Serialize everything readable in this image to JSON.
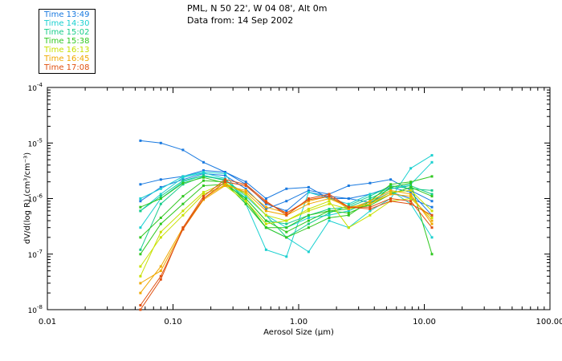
{
  "header": {
    "line1": "PML, N 50 22', W 04 08', Alt 0m",
    "line2": "Data from: 14 Sep 2002"
  },
  "legend": [
    {
      "label": "Time 13:49",
      "color": "#1a7ae0"
    },
    {
      "label": "Time 14:30",
      "color": "#1ad0d0"
    },
    {
      "label": "Time 15:02",
      "color": "#18cc8a"
    },
    {
      "label": "Time 15:38",
      "color": "#30c820"
    },
    {
      "label": "Time 16:13",
      "color": "#c8e000"
    },
    {
      "label": "Time 16:45",
      "color": "#f0a800"
    },
    {
      "label": "Time 17:08",
      "color": "#e05010"
    }
  ],
  "chart_data": {
    "type": "line",
    "xscale": "log",
    "yscale": "log",
    "xlim": [
      0.01,
      100
    ],
    "ylim": [
      1e-08,
      0.0001
    ],
    "xlabel": "Aerosol Size (μm)",
    "ylabel": "dV/d(log R) (cm³/cm⁻³)",
    "xticks": [
      {
        "value": 0.01,
        "label": "0.01"
      },
      {
        "value": 0.1,
        "label": "0.10"
      },
      {
        "value": 1,
        "label": "1.00"
      },
      {
        "value": 10,
        "label": "10.00"
      },
      {
        "value": 100,
        "label": "100.00"
      }
    ],
    "yticks": [
      {
        "value": 1e-08,
        "base": "10",
        "exp": "-8"
      },
      {
        "value": 1e-07,
        "base": "10",
        "exp": "-7"
      },
      {
        "value": 1e-06,
        "base": "10",
        "exp": "-6"
      },
      {
        "value": 1e-05,
        "base": "10",
        "exp": "-5"
      },
      {
        "value": 0.0001,
        "base": "10",
        "exp": "-4"
      }
    ],
    "x": [
      0.055,
      0.08,
      0.12,
      0.175,
      0.26,
      0.38,
      0.55,
      0.8,
      1.2,
      1.75,
      2.5,
      3.7,
      5.4,
      7.8,
      11.5
    ],
    "series": [
      {
        "name": "13:49 a",
        "color": "#1a7ae0",
        "values": [
          1.1e-05,
          1e-05,
          7.5e-06,
          4.5e-06,
          3e-06,
          1.8e-06,
          8e-07,
          6e-07,
          1.3e-06,
          1.1e-06,
          1e-06,
          1.2e-06,
          1.6e-06,
          1.3e-06,
          5e-07
        ]
      },
      {
        "name": "13:49 b",
        "color": "#1a7ae0",
        "values": [
          1.8e-06,
          2.2e-06,
          2.5e-06,
          3.2e-06,
          3e-06,
          2e-06,
          1e-06,
          1.5e-06,
          1.6e-06,
          1e-06,
          1e-06,
          8.5e-07,
          1.3e-06,
          1e-06,
          7e-07
        ]
      },
      {
        "name": "13:49 c",
        "color": "#1a7ae0",
        "values": [
          9e-07,
          1.6e-06,
          2.2e-06,
          2.8e-06,
          2.6e-06,
          1.5e-06,
          6.5e-07,
          9e-07,
          1.4e-06,
          1.2e-06,
          1.7e-06,
          1.9e-06,
          2.2e-06,
          1.4e-06,
          9e-07
        ]
      },
      {
        "name": "14:30 a",
        "color": "#1ad0d0",
        "values": [
          1e-06,
          1.5e-06,
          2.5e-06,
          3e-06,
          2.8e-06,
          8e-07,
          1.2e-07,
          9e-08,
          1.3e-06,
          1e-06,
          8e-07,
          1.2e-06,
          1.5e-06,
          1.8e-06,
          4.5e-06
        ]
      },
      {
        "name": "14:30 b",
        "color": "#1ad0d0",
        "values": [
          6e-07,
          1.2e-06,
          2.4e-06,
          2.9e-06,
          2.3e-06,
          9e-07,
          3e-07,
          2e-07,
          1.1e-07,
          4e-07,
          3e-07,
          6e-07,
          1e-06,
          3.5e-06,
          6e-06
        ]
      },
      {
        "name": "14:30 c",
        "color": "#1ad0d0",
        "values": [
          3e-07,
          1e-06,
          2e-06,
          2.6e-06,
          2.2e-06,
          1.1e-06,
          5e-07,
          3e-07,
          4.5e-07,
          5e-07,
          6e-07,
          9e-07,
          1.4e-06,
          8e-07,
          2e-07
        ]
      },
      {
        "name": "15:02 a",
        "color": "#18cc8a",
        "values": [
          1.2e-07,
          8e-07,
          1.8e-06,
          2.5e-06,
          2.2e-06,
          1e-06,
          4e-07,
          3.5e-07,
          5e-07,
          6.5e-07,
          7e-07,
          1e-06,
          1.5e-06,
          1.7e-06,
          1.2e-06
        ]
      },
      {
        "name": "15:02 b",
        "color": "#18cc8a",
        "values": [
          6e-07,
          1.1e-06,
          2.1e-06,
          2.6e-06,
          2.1e-06,
          1.2e-06,
          5e-07,
          2e-07,
          3.5e-07,
          5.5e-07,
          7.5e-07,
          1.1e-06,
          1.7e-06,
          1.5e-06,
          1.4e-06
        ]
      },
      {
        "name": "15:38 a",
        "color": "#30c820",
        "values": [
          2e-07,
          4.5e-07,
          1.1e-06,
          2.1e-06,
          2e-06,
          9e-07,
          3e-07,
          2e-07,
          3e-07,
          4.5e-07,
          5e-07,
          9e-07,
          1.8e-06,
          2e-06,
          2.5e-06
        ]
      },
      {
        "name": "15:38 b",
        "color": "#30c820",
        "values": [
          7e-07,
          1e-06,
          1.9e-06,
          2.4e-06,
          1.9e-06,
          8e-07,
          3e-07,
          3e-07,
          5e-07,
          6e-07,
          6.5e-07,
          7.5e-07,
          1.2e-06,
          1.6e-06,
          1.1e-06
        ]
      },
      {
        "name": "15:38 c",
        "color": "#30c820",
        "values": [
          1e-07,
          3.5e-07,
          8e-07,
          1.7e-06,
          1.8e-06,
          1e-06,
          4e-07,
          2.5e-07,
          4e-07,
          6e-07,
          5.5e-07,
          8e-07,
          1.6e-06,
          1.9e-06,
          1e-07
        ]
      },
      {
        "name": "16:13 a",
        "color": "#c8e000",
        "values": [
          4e-08,
          2.5e-07,
          6e-07,
          1.3e-06,
          1.9e-06,
          1.2e-06,
          5e-07,
          4e-07,
          6e-07,
          8e-07,
          6.5e-07,
          8e-07,
          1.3e-06,
          1.4e-06,
          6e-07
        ]
      },
      {
        "name": "16:13 b",
        "color": "#c8e000",
        "values": [
          6e-08,
          2e-07,
          5e-07,
          1.2e-06,
          1.7e-06,
          9e-07,
          3.5e-07,
          4e-07,
          6.5e-07,
          9e-07,
          3e-07,
          5e-07,
          9e-07,
          1e-06,
          4.5e-07
        ]
      },
      {
        "name": "16:45 a",
        "color": "#f0a800",
        "values": [
          2e-08,
          6e-08,
          3e-07,
          1e-06,
          1.8e-06,
          1.3e-06,
          6e-07,
          5e-07,
          8e-07,
          1e-06,
          7e-07,
          8e-07,
          1.2e-06,
          1.1e-06,
          4e-07
        ]
      },
      {
        "name": "16:45 b",
        "color": "#f0a800",
        "values": [
          3e-08,
          5e-08,
          2.8e-07,
          9.5e-07,
          1.7e-06,
          1.4e-06,
          7e-07,
          5.5e-07,
          9e-07,
          1.1e-06,
          6.5e-07,
          9e-07,
          1.4e-06,
          1.2e-06,
          3.5e-07
        ]
      },
      {
        "name": "17:08 a",
        "color": "#e05010",
        "values": [
          1e-08,
          3.5e-08,
          3e-07,
          1.1e-06,
          2.2e-06,
          1.8e-06,
          9e-07,
          5e-07,
          1e-06,
          1.2e-06,
          7e-07,
          6.5e-07,
          9e-07,
          8e-07,
          5e-07
        ]
      },
      {
        "name": "17:08 b",
        "color": "#e05010",
        "values": [
          1.2e-08,
          4e-08,
          2.8e-07,
          1e-06,
          2e-06,
          1.7e-06,
          8.5e-07,
          5.5e-07,
          9.5e-07,
          1.1e-06,
          7e-07,
          7e-07,
          1e-06,
          9e-07,
          3e-07
        ]
      }
    ]
  }
}
